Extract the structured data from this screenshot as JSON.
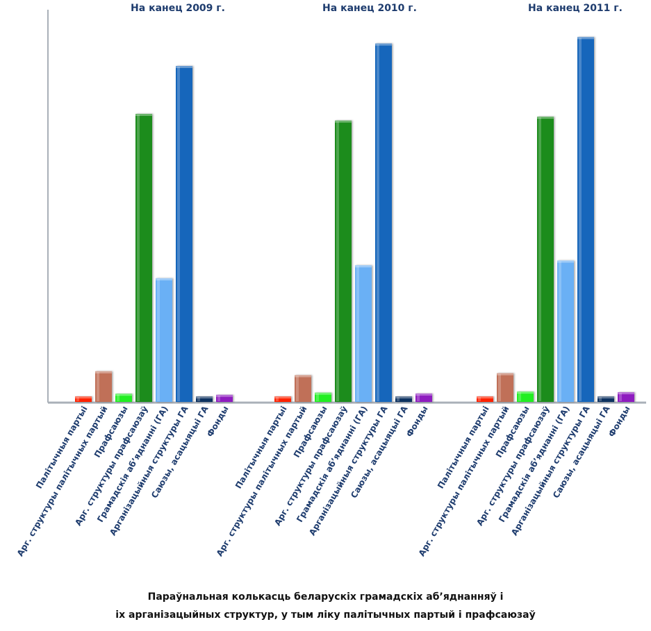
{
  "chart_data": {
    "type": "bar",
    "caption_line1": "Параўнальная колькасць беларускіх грамадскіх аб’яднанняў і",
    "caption_line2": "іх арганізацыйных структур, у тым ліку палітычных партый і прафсаюзаў",
    "categories": [
      "Палітычныя партыі",
      "Арг. структуры палітычных партый",
      "Прафсаюзы",
      "Арг. структуры прафсаюзаў",
      "Грамадскія аб’яднанні (ГА)",
      "Арганізацыйныя структуры ГА",
      "Саюзы, асацыяцыі ГА",
      "Фонды"
    ],
    "colors": [
      "#ff2200",
      "#c07058",
      "#22ee22",
      "#1a8c1a",
      "#6ab0f5",
      "#1466bb",
      "#0d3060",
      "#8e1fbf"
    ],
    "groups": [
      {
        "title": "На канец 2009 г.",
        "values": [
          15,
          142,
          38,
          1335,
          573,
          1557,
          10,
          33
        ]
      },
      {
        "title": "На канец 2010 г.",
        "values": [
          15,
          124,
          43,
          1304,
          633,
          1661,
          10,
          39
        ]
      },
      {
        "title": "На канец 2011 г.",
        "values": [
          15,
          133,
          48,
          1322,
          655,
          1691,
          10,
          45
        ]
      }
    ],
    "ylim": [
      0,
      1750
    ],
    "grid": false
  }
}
